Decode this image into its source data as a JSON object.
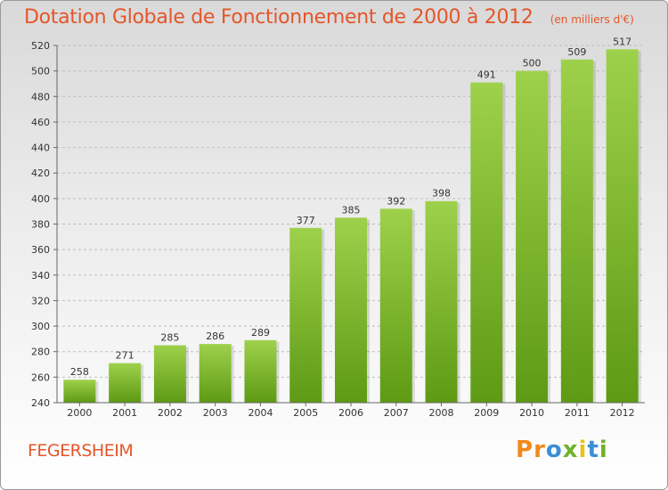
{
  "chart_data": {
    "type": "bar",
    "title": "Dotation Globale de Fonctionnement de 2000 à 2012",
    "subtitle": "(en milliers d'€)",
    "categories": [
      "2000",
      "2001",
      "2002",
      "2003",
      "2004",
      "2005",
      "2006",
      "2007",
      "2008",
      "2009",
      "2010",
      "2011",
      "2012"
    ],
    "values": [
      258,
      271,
      285,
      286,
      289,
      377,
      385,
      392,
      398,
      491,
      500,
      509,
      517
    ],
    "ylim": [
      240,
      520
    ],
    "yticks": [
      240,
      260,
      280,
      300,
      320,
      340,
      360,
      380,
      400,
      420,
      440,
      460,
      480,
      500,
      520
    ],
    "grid": "horizontal-dashed",
    "colors": {
      "bar_top": "#9ed14b",
      "bar_bottom": "#5e9a14",
      "title": "#e4562a"
    }
  },
  "commune": "FEGERSHEIM",
  "logo": {
    "letters": [
      "P",
      "r",
      "o",
      "x",
      "i",
      "t",
      "i"
    ],
    "colors": [
      "#f08a1c",
      "#f08a1c",
      "#3a8fd6",
      "#6cb42a",
      "#e8c31a",
      "#3a8fd6",
      "#6cb42a"
    ]
  }
}
